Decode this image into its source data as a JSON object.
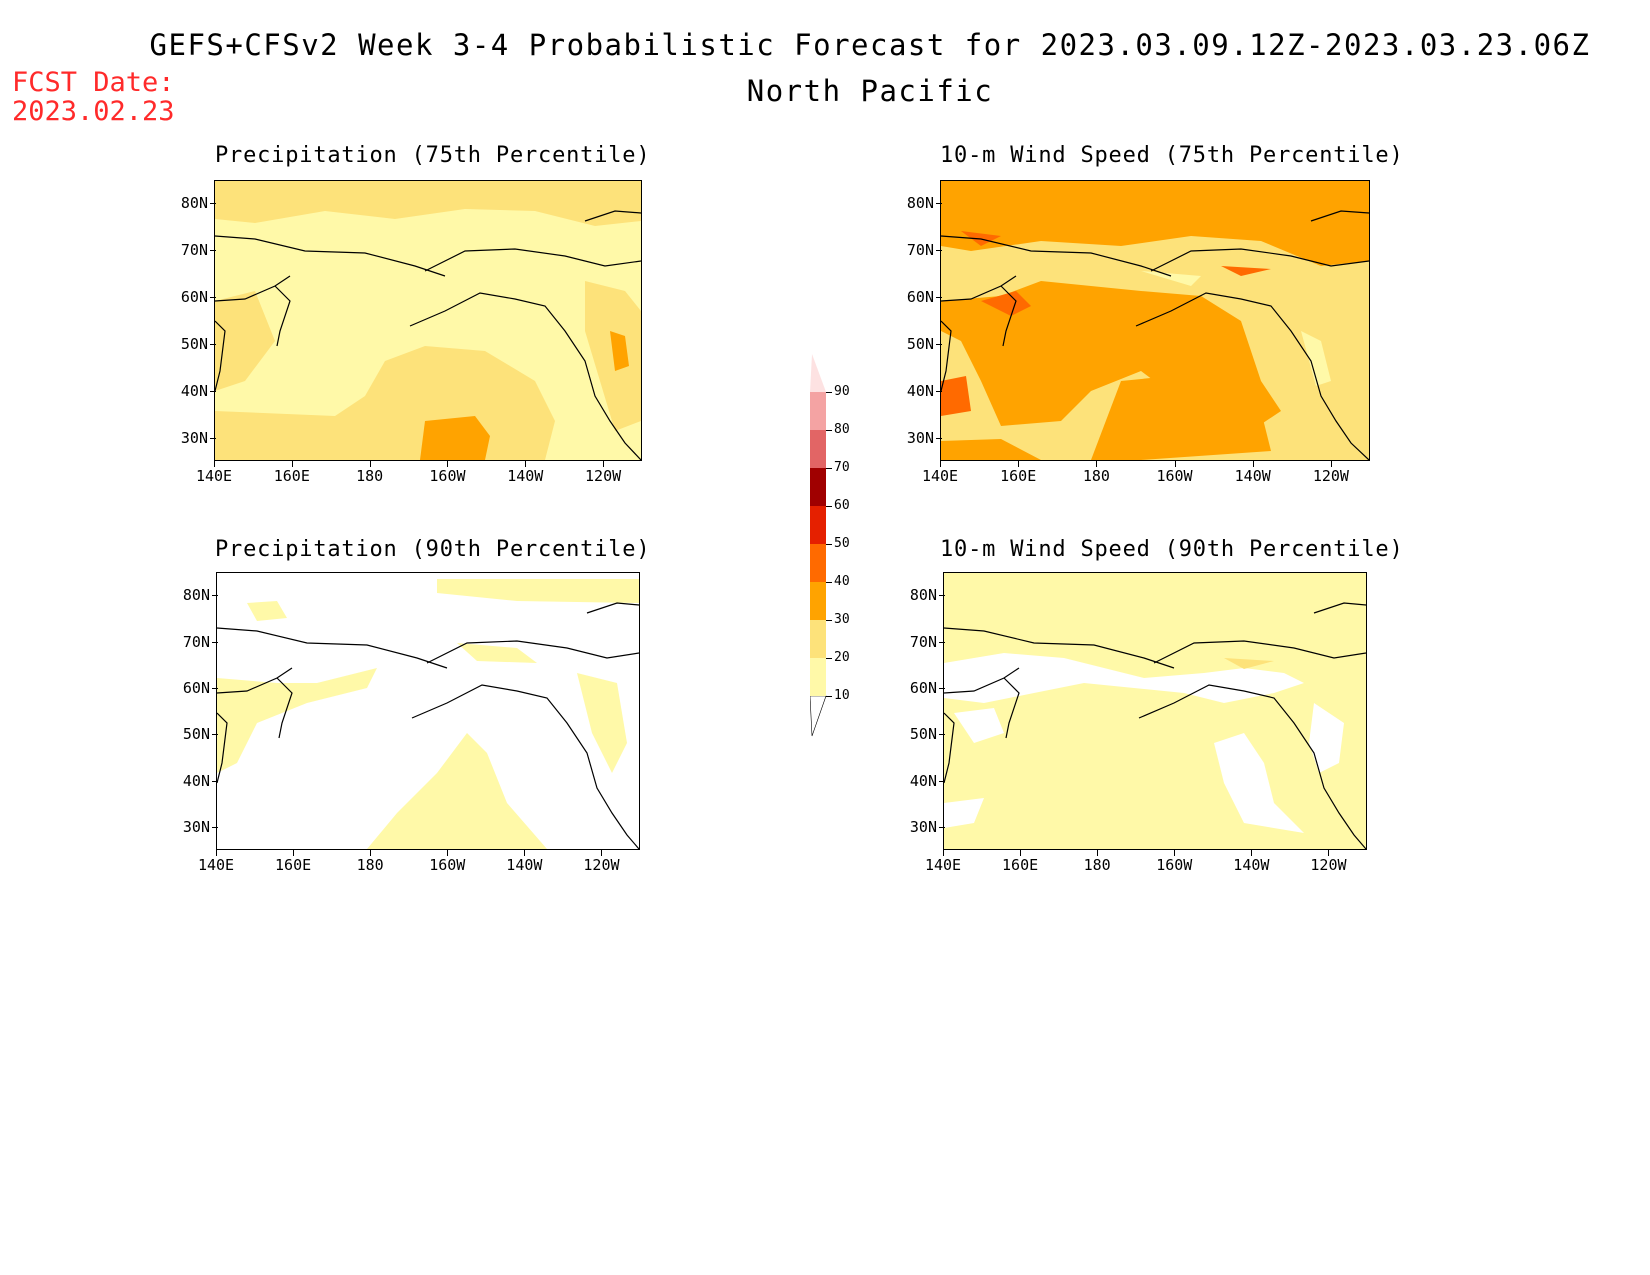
{
  "title": "GEFS+CFSv2 Week 3-4 Probabilistic Forecast for 2023.03.09.12Z-2023.03.23.06Z",
  "subtitle": "North Pacific",
  "fcst_label": "FCST Date:",
  "fcst_date": "2023.02.23",
  "lat_ticks": [
    "80N",
    "70N",
    "60N",
    "50N",
    "40N",
    "30N"
  ],
  "lon_ticks": [
    "140E",
    "160E",
    "180",
    "160W",
    "140W",
    "120W"
  ],
  "panels": [
    {
      "id": "precip75",
      "title": "Precipitation (75th Percentile)",
      "base_category": "10-20"
    },
    {
      "id": "wind75",
      "title": "10-m Wind Speed (75th Percentile)",
      "base_category": "20-30"
    },
    {
      "id": "precip90",
      "title": "Precipitation (90th Percentile)",
      "base_category": "<10"
    },
    {
      "id": "wind90",
      "title": "10-m Wind Speed (90th Percentile)",
      "base_category": "10-20"
    }
  ],
  "colorbar": {
    "labels": [
      "10",
      "20",
      "30",
      "40",
      "50",
      "60",
      "70",
      "80",
      "90"
    ],
    "colors": [
      "#fff9a8",
      "#fde27a",
      "#ffa300",
      "#ff6a00",
      "#e52000",
      "#a00000",
      "#e26565",
      "#f4a3a3",
      "#fde2e2"
    ]
  },
  "colors": {
    "fcst_date": "#ff2a2a",
    "coastline": "#000000"
  }
}
